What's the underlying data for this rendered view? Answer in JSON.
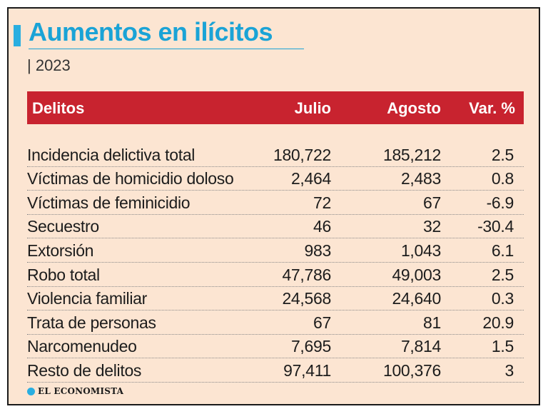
{
  "title": "Aumentos en ilícitos",
  "subtitle": "| 2023",
  "table": {
    "headers": {
      "delitos": "Delitos",
      "julio": "Julio",
      "agosto": "Agosto",
      "var": "Var. %"
    },
    "rows": [
      {
        "name": "Incidencia delictiva total",
        "julio": "180,722",
        "agosto": "185,212",
        "var": "2.5"
      },
      {
        "name": "Víctimas de homicidio doloso",
        "julio": "2,464",
        "agosto": "2,483",
        "var": "0.8"
      },
      {
        "name": "Víctimas de feminicidio",
        "julio": "72",
        "agosto": "67",
        "var": "-6.9"
      },
      {
        "name": "Secuestro",
        "julio": "46",
        "agosto": "32",
        "var": "-30.4"
      },
      {
        "name": "Extorsión",
        "julio": "983",
        "agosto": "1,043",
        "var": "6.1"
      },
      {
        "name": "Robo total",
        "julio": "47,786",
        "agosto": "49,003",
        "var": "2.5"
      },
      {
        "name": "Violencia familiar",
        "julio": "24,568",
        "agosto": "24,640",
        "var": "0.3"
      },
      {
        "name": "Trata de personas",
        "julio": "67",
        "agosto": "81",
        "var": "20.9"
      },
      {
        "name": "Narcomenudeo",
        "julio": "7,695",
        "agosto": "7,814",
        "var": "1.5"
      },
      {
        "name": "Resto de delitos",
        "julio": "97,411",
        "agosto": "100,376",
        "var": "3"
      }
    ]
  },
  "footer": {
    "logo_icon": "el-economista-logo-icon",
    "source": "EL ECONOMISTA"
  },
  "colors": {
    "background": "#fce5d2",
    "accent": "#1aa3d6",
    "header": "#c8232f"
  }
}
